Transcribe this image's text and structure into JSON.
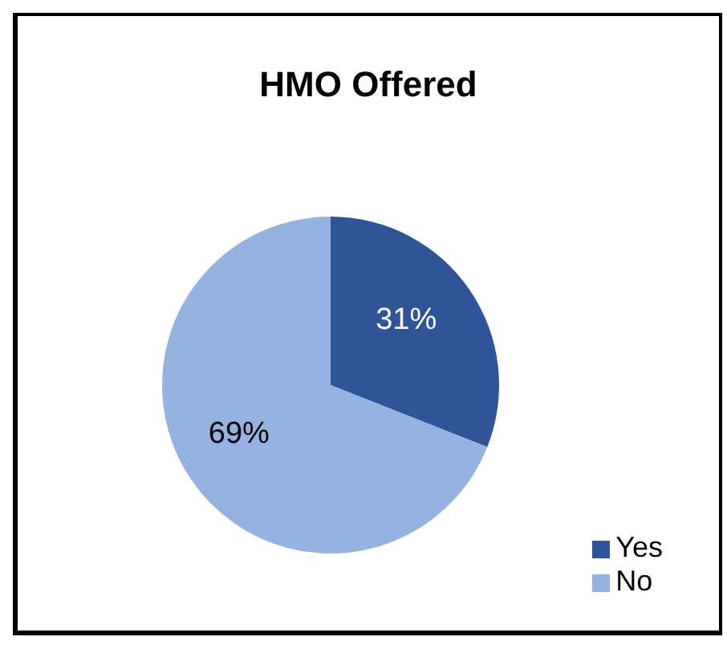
{
  "chart_data": {
    "type": "pie",
    "title": "HMO Offered",
    "categories": [
      "Yes",
      "No"
    ],
    "values": [
      31,
      69
    ],
    "colors": [
      "#2e5597",
      "#95b3e0"
    ],
    "value_labels": [
      "31%",
      "69%"
    ],
    "legend": "bottom right"
  }
}
